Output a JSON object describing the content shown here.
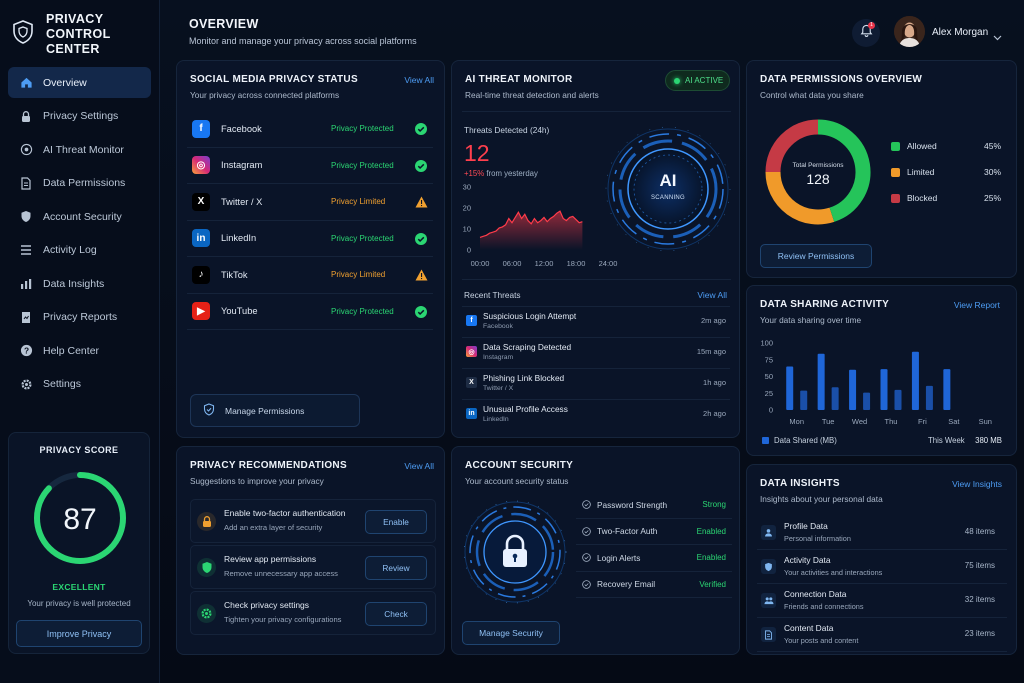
{
  "sidebar": {
    "title": "PRIVACY CONTROL CENTER",
    "items": [
      {
        "label": "Overview",
        "icon": "home-icon",
        "active": true
      },
      {
        "label": "Privacy Settings",
        "icon": "lock-icon"
      },
      {
        "label": "AI Threat Monitor",
        "icon": "radar-icon"
      },
      {
        "label": "Data Permissions",
        "icon": "document-icon"
      },
      {
        "label": "Account Security",
        "icon": "shield-icon"
      },
      {
        "label": "Activity Log",
        "icon": "list-icon"
      },
      {
        "label": "Data Insights",
        "icon": "bar-chart-icon"
      },
      {
        "label": "Privacy Reports",
        "icon": "report-icon"
      },
      {
        "label": "Help Center",
        "icon": "help-icon"
      },
      {
        "label": "Settings",
        "icon": "gear-icon"
      }
    ],
    "score": {
      "title": "PRIVACY SCORE",
      "value": "87",
      "fraction": 0.87,
      "rating": "EXCELLENT",
      "subtitle": "Your privacy is well protected",
      "button": "Improve Privacy"
    }
  },
  "header": {
    "title": "OVERVIEW",
    "subtitle": "Monitor and manage your privacy across social platforms",
    "notification_count": "1",
    "user_name": "Alex Morgan"
  },
  "social": {
    "title": "SOCIAL MEDIA PRIVACY STATUS",
    "subtitle": "Your privacy across connected platforms",
    "view_all": "View All",
    "platforms": [
      {
        "name": "Facebook",
        "status": "Privacy Protected",
        "state": "ok",
        "color": "#1877f2",
        "glyph": "f"
      },
      {
        "name": "Instagram",
        "status": "Privacy Protected",
        "state": "ok",
        "color": "#d62976",
        "glyph": "◎"
      },
      {
        "name": "Twitter / X",
        "status": "Privacy Limited",
        "state": "warn",
        "color": "#000000",
        "glyph": "X"
      },
      {
        "name": "LinkedIn",
        "status": "Privacy Protected",
        "state": "ok",
        "color": "#0a66c2",
        "glyph": "in"
      },
      {
        "name": "TikTok",
        "status": "Privacy Limited",
        "state": "warn",
        "color": "#000000",
        "glyph": "♪"
      },
      {
        "name": "YouTube",
        "status": "Privacy Protected",
        "state": "ok",
        "color": "#e62117",
        "glyph": "▶"
      }
    ],
    "manage_button": "Manage Permissions"
  },
  "threat": {
    "title": "AI THREAT MONITOR",
    "subtitle": "Real-time threat detection and alerts",
    "badge": "AI ACTIVE",
    "detected_label": "Threats Detected (24h)",
    "detected_value": "12",
    "change_pct": "+15%",
    "change_text": "from yesterday",
    "orb_label": "AI",
    "orb_status": "SCANNING",
    "recent_title": "Recent Threats",
    "view_all": "View All",
    "recent": [
      {
        "title": "Suspicious Login Attempt",
        "source": "Facebook",
        "time": "2m ago",
        "color": "#1877f2",
        "glyph": "f"
      },
      {
        "title": "Data Scraping Detected",
        "source": "Instagram",
        "time": "15m ago",
        "color": "#d62976",
        "glyph": "◎"
      },
      {
        "title": "Phishing Link Blocked",
        "source": "Twitter / X",
        "time": "1h ago",
        "color": "#1e2c44",
        "glyph": "X"
      },
      {
        "title": "Unusual Profile Access",
        "source": "LinkedIn",
        "time": "2h ago",
        "color": "#0a66c2",
        "glyph": "in"
      }
    ]
  },
  "permissions": {
    "title": "DATA PERMISSIONS OVERVIEW",
    "subtitle": "Control what data you share",
    "total_label": "Total Permissions",
    "total_value": "128",
    "legend": [
      {
        "label": "Allowed",
        "value": "45%",
        "color": "#25c45a"
      },
      {
        "label": "Limited",
        "value": "30%",
        "color": "#f09a2a"
      },
      {
        "label": "Blocked",
        "value": "25%",
        "color": "#c53a45"
      }
    ],
    "review_button": "Review Permissions"
  },
  "sharing": {
    "title": "DATA SHARING ACTIVITY",
    "subtitle": "Your data sharing over time",
    "view_report": "View Report",
    "legend_label": "Data Shared (MB)",
    "period_label": "This Week",
    "period_value": "380 MB"
  },
  "recommendations": {
    "title": "PRIVACY RECOMMENDATIONS",
    "subtitle": "Suggestions to improve your privacy",
    "view_all": "View All",
    "items": [
      {
        "title": "Enable two-factor authentication",
        "subtitle": "Add an extra layer of security",
        "button": "Enable",
        "color": "#f0a030",
        "icon": "lock-icon"
      },
      {
        "title": "Review app permissions",
        "subtitle": "Remove unnecessary app access",
        "button": "Review",
        "color": "#2bd673",
        "icon": "shield-icon"
      },
      {
        "title": "Check privacy settings",
        "subtitle": "Tighten your privacy configurations",
        "button": "Check",
        "color": "#2bd673",
        "icon": "gear-icon"
      }
    ]
  },
  "security": {
    "title": "ACCOUNT SECURITY",
    "subtitle": "Your account security status",
    "rows": [
      {
        "label": "Password Strength",
        "value": "Strong"
      },
      {
        "label": "Two-Factor Auth",
        "value": "Enabled"
      },
      {
        "label": "Login Alerts",
        "value": "Enabled"
      },
      {
        "label": "Recovery Email",
        "value": "Verified"
      }
    ],
    "manage_button": "Manage Security"
  },
  "insights": {
    "title": "DATA INSIGHTS",
    "subtitle": "Insights about your personal data",
    "view_insights": "View Insights",
    "items": [
      {
        "title": "Profile Data",
        "subtitle": "Personal information",
        "count": "48 items",
        "icon": "user-icon"
      },
      {
        "title": "Activity Data",
        "subtitle": "Your activities and interactions",
        "count": "75 items",
        "icon": "shield-icon"
      },
      {
        "title": "Connection Data",
        "subtitle": "Friends and connections",
        "count": "32 items",
        "icon": "users-icon"
      },
      {
        "title": "Content Data",
        "subtitle": "Your posts and content",
        "count": "23 items",
        "icon": "document-icon"
      }
    ]
  },
  "chart_data": [
    {
      "type": "area",
      "x_ticks": [
        "00:00",
        "06:00",
        "12:00",
        "18:00",
        "24:00"
      ],
      "y_ticks": [
        0,
        10,
        20,
        30
      ],
      "ylim": [
        0,
        30
      ],
      "xlim": [
        0,
        24
      ],
      "series": [
        {
          "values": [
            [
              0,
              6
            ],
            [
              0.6,
              6.5
            ],
            [
              1.2,
              7
            ],
            [
              1.8,
              8
            ],
            [
              2.4,
              8.5
            ],
            [
              3,
              9
            ],
            [
              3.6,
              10.5
            ],
            [
              4.2,
              11
            ],
            [
              4.8,
              12
            ],
            [
              5.4,
              15
            ],
            [
              6,
              13
            ],
            [
              6.6,
              15.5
            ],
            [
              7.2,
              18
            ],
            [
              7.8,
              15
            ],
            [
              8.4,
              17
            ],
            [
              9,
              14
            ],
            [
              9.6,
              12.5
            ],
            [
              10.2,
              15
            ],
            [
              10.8,
              13
            ],
            [
              11.4,
              14
            ],
            [
              12,
              15.5
            ],
            [
              12.6,
              13.5
            ],
            [
              13.2,
              15
            ],
            [
              13.8,
              16
            ],
            [
              14.4,
              17.5
            ],
            [
              15,
              18.5
            ],
            [
              15.6,
              15
            ],
            [
              16.2,
              14
            ],
            [
              16.8,
              15.5
            ],
            [
              17.4,
              16
            ],
            [
              18,
              14.5
            ],
            [
              18.6,
              13
            ],
            [
              19.2,
              13.5
            ]
          ]
        }
      ]
    },
    {
      "type": "bar",
      "categories": [
        "Mon",
        "Tue",
        "Wed",
        "Thu",
        "Fri",
        "Sat",
        "Sun"
      ],
      "y_ticks": [
        0,
        25,
        50,
        75,
        100
      ],
      "ylim": [
        0,
        100
      ],
      "series": [
        {
          "values": [
            65,
            84,
            60,
            61,
            87,
            61,
            0
          ]
        },
        {
          "values": [
            29,
            34,
            26,
            30,
            36,
            0,
            0
          ]
        }
      ]
    },
    {
      "type": "pie",
      "categories": [
        "Allowed",
        "Limited",
        "Blocked"
      ],
      "values": [
        45,
        30,
        25
      ]
    }
  ]
}
